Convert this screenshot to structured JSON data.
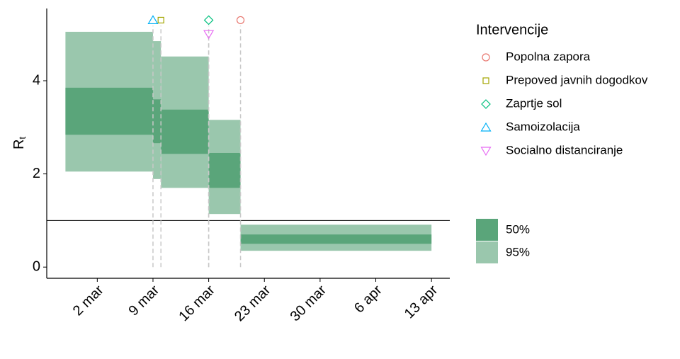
{
  "chart_data": {
    "type": "interval",
    "y_label": {
      "main": "R",
      "sub": "t"
    },
    "xlim": [
      -4.35,
      46.3
    ],
    "ylim": [
      -0.24,
      5.55
    ],
    "xticks": [
      {
        "value": 2,
        "label": "2 mar"
      },
      {
        "value": 9,
        "label": "9 mar"
      },
      {
        "value": 16,
        "label": "16 mar"
      },
      {
        "value": 23,
        "label": "23 mar"
      },
      {
        "value": 30,
        "label": "30 mar"
      },
      {
        "value": 37,
        "label": "6 apr"
      },
      {
        "value": 44,
        "label": "13 apr"
      }
    ],
    "yticks": [
      0,
      2,
      4
    ],
    "reference_line": 1,
    "bands": [
      {
        "name": "50%",
        "color": "#5aa57a"
      },
      {
        "name": "95%",
        "color": "#9ac7ad"
      }
    ],
    "segments": [
      {
        "start": -2,
        "end": 9,
        "lo95": 2.05,
        "hi95": 5.05,
        "lo50": 2.84,
        "hi50": 3.85
      },
      {
        "start": 9,
        "end": 10,
        "lo95": 1.89,
        "hi95": 4.85,
        "lo50": 2.66,
        "hi50": 3.6
      },
      {
        "start": 10,
        "end": 16,
        "lo95": 1.7,
        "hi95": 4.52,
        "lo50": 2.43,
        "hi50": 3.38
      },
      {
        "start": 16,
        "end": 20,
        "lo95": 1.14,
        "hi95": 3.16,
        "lo50": 1.7,
        "hi50": 2.45
      },
      {
        "start": 20,
        "end": 44,
        "lo95": 0.35,
        "hi95": 0.91,
        "lo50": 0.5,
        "hi50": 0.7
      }
    ],
    "legend_title": "Intervencije",
    "interventions": [
      {
        "name": "Popolna zapora",
        "x": 20,
        "y": 5.3,
        "color": "#e8776f",
        "shape": "circle"
      },
      {
        "name": "Prepoved javnih dogodkov",
        "x": 10,
        "y": 5.3,
        "color": "#a3a500",
        "shape": "square"
      },
      {
        "name": "Zaprtje sol",
        "x": 16,
        "y": 5.3,
        "color": "#00bf7d",
        "shape": "diamond"
      },
      {
        "name": "Samoizolacija",
        "x": 9,
        "y": 5.3,
        "color": "#00b0f6",
        "shape": "triangle"
      },
      {
        "name": "Socialno distanciranje",
        "x": 16,
        "y": 5.0,
        "color": "#e76bf3",
        "shape": "triangle-down"
      }
    ]
  }
}
